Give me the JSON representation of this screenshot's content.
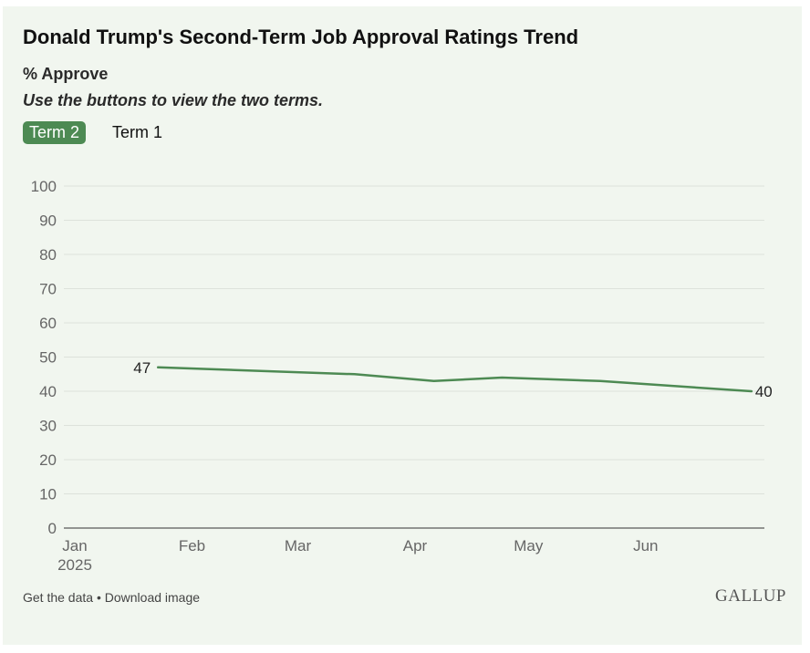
{
  "header": {
    "title": "Donald Trump's Second-Term Job Approval Ratings Trend",
    "subtitle": "% Approve",
    "instruction": "Use the buttons to view the two terms."
  },
  "buttons": [
    {
      "label": "Term 2",
      "active": true
    },
    {
      "label": "Term 1",
      "active": false
    }
  ],
  "footer": {
    "get_data": "Get the data",
    "separator": " • ",
    "download": "Download image",
    "logo": "GALLUP"
  },
  "colors": {
    "line": "#4d8a53",
    "background": "#f1f6ef",
    "grid": "#dde2db"
  },
  "chart_data": {
    "type": "line",
    "title": "Donald Trump's Second-Term Job Approval Ratings Trend",
    "ylabel": "% Approve",
    "ylim": [
      0,
      100
    ],
    "yticks": [
      0,
      10,
      20,
      30,
      40,
      50,
      60,
      70,
      80,
      90,
      100
    ],
    "xlim": [
      "2025-01-01",
      "2025-06-30"
    ],
    "xticks": [
      {
        "date": "2025-01-01",
        "label": "Jan",
        "sublabel": "2025"
      },
      {
        "date": "2025-02-01",
        "label": "Feb"
      },
      {
        "date": "2025-03-01",
        "label": "Mar"
      },
      {
        "date": "2025-04-01",
        "label": "Apr"
      },
      {
        "date": "2025-05-01",
        "label": "May"
      },
      {
        "date": "2025-06-01",
        "label": "Jun"
      }
    ],
    "grid": true,
    "legend": false,
    "series": [
      {
        "points": [
          {
            "x": "2025-01-23",
            "y": 47,
            "label": "47"
          },
          {
            "x": "2025-03-16",
            "y": 45
          },
          {
            "x": "2025-04-06",
            "y": 43
          },
          {
            "x": "2025-04-24",
            "y": 44
          },
          {
            "x": "2025-05-20",
            "y": 43
          },
          {
            "x": "2025-06-29",
            "y": 40,
            "label": "40"
          }
        ]
      }
    ]
  }
}
